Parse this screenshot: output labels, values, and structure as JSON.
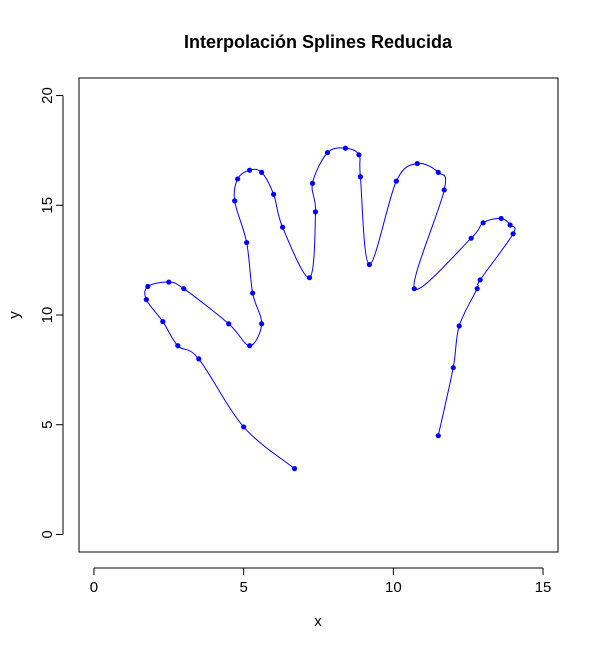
{
  "chart_data": {
    "type": "line",
    "title": "Interpolación Splines Reducida",
    "xlabel": "x",
    "ylabel": "y",
    "xlim": [
      -0.5,
      15.5
    ],
    "ylim": [
      -0.8,
      20.8
    ],
    "xticks": [
      0,
      5,
      10,
      15
    ],
    "yticks": [
      0,
      5,
      10,
      15,
      20
    ],
    "grid": false,
    "legend": "none",
    "color": "#0000ff",
    "series": [
      {
        "points": [
          [
            6.7,
            3.0
          ],
          [
            5.0,
            4.9
          ],
          [
            3.5,
            8.0
          ],
          [
            2.8,
            8.6
          ],
          [
            2.3,
            9.7
          ],
          [
            1.75,
            10.7
          ],
          [
            1.8,
            11.3
          ],
          [
            2.5,
            11.5
          ],
          [
            3.0,
            11.2
          ],
          [
            4.5,
            9.6
          ],
          [
            5.2,
            8.6
          ],
          [
            5.6,
            9.6
          ],
          [
            5.3,
            11.0
          ],
          [
            5.1,
            13.3
          ],
          [
            4.7,
            15.2
          ],
          [
            4.8,
            16.2
          ],
          [
            5.2,
            16.6
          ],
          [
            5.6,
            16.5
          ],
          [
            6.0,
            15.5
          ],
          [
            6.3,
            14.0
          ],
          [
            7.2,
            11.7
          ],
          [
            7.4,
            14.7
          ],
          [
            7.3,
            16.0
          ],
          [
            7.8,
            17.4
          ],
          [
            8.4,
            17.6
          ],
          [
            8.85,
            17.3
          ],
          [
            8.9,
            16.3
          ],
          [
            9.2,
            12.3
          ],
          [
            10.1,
            16.1
          ],
          [
            10.8,
            16.9
          ],
          [
            11.5,
            16.5
          ],
          [
            11.7,
            15.7
          ],
          [
            10.7,
            11.2
          ],
          [
            12.6,
            13.5
          ],
          [
            13.0,
            14.2
          ],
          [
            13.6,
            14.4
          ],
          [
            13.9,
            14.1
          ],
          [
            14.0,
            13.7
          ],
          [
            12.9,
            11.6
          ],
          [
            12.8,
            11.2
          ],
          [
            12.2,
            9.5
          ],
          [
            12.0,
            7.6
          ],
          [
            11.5,
            4.5
          ]
        ]
      }
    ]
  }
}
